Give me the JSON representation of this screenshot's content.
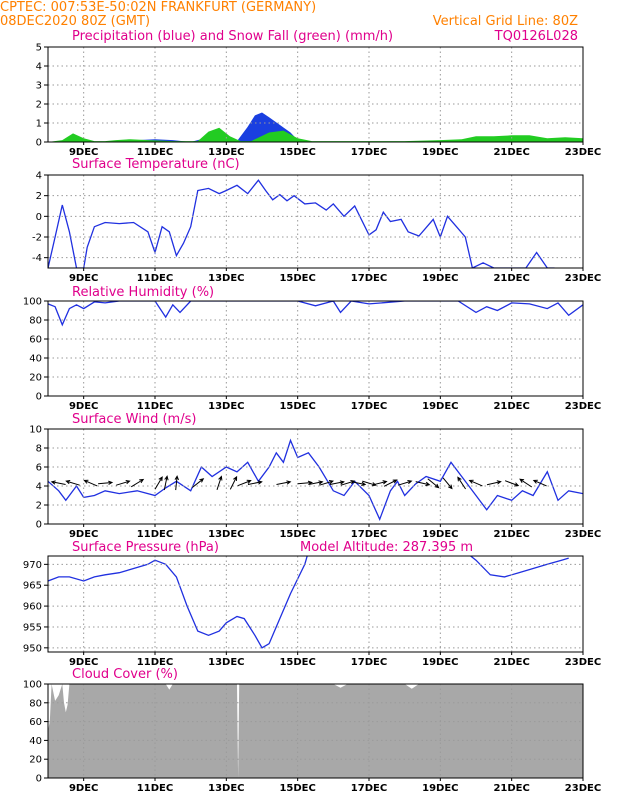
{
  "header": {
    "station": "CPTEC:   007:53E-50:02N   FRANKFURT (GERMANY)",
    "run": "08DEC2020 80Z (GMT)",
    "grid_note": "Vertical Grid Line: 80Z",
    "code": "TQ0126L028"
  },
  "colors": {
    "header": "#ff8000",
    "title": "#e0008c",
    "line": "#2030e0",
    "precip": "#1a3fe0",
    "snow": "#22cc22",
    "cloud": "#a8a8a8",
    "grid": "#999999"
  },
  "chart_data": [
    {
      "id": "precip",
      "type": "area",
      "title": "Precipitation (blue) and Snow Fall (green) (mm/h)",
      "x_labels": [
        "9DEC",
        "11DEC",
        "13DEC",
        "15DEC",
        "17DEC",
        "19DEC",
        "21DEC",
        "23DEC"
      ],
      "x_ticks": [
        1,
        3,
        5,
        7,
        9,
        11,
        13,
        15
      ],
      "xlim": [
        0,
        15
      ],
      "ylim": [
        0,
        5
      ],
      "yticks": [
        0,
        1,
        2,
        3,
        4,
        5
      ],
      "series": [
        {
          "name": "Precipitation",
          "color": "#1a3fe0",
          "x": [
            0,
            1.8,
            2.0,
            2.5,
            3.0,
            3.5,
            4.0,
            4.6,
            4.8,
            5.0,
            5.3,
            5.6,
            5.8,
            6.0,
            6.2,
            6.5,
            6.8,
            7.0,
            7.5,
            15
          ],
          "values": [
            0,
            0,
            0.05,
            0.1,
            0.15,
            0.1,
            0,
            0.3,
            0.55,
            0.3,
            0.05,
            0.8,
            1.4,
            1.55,
            1.3,
            0.9,
            0.5,
            0.1,
            0,
            0
          ]
        },
        {
          "name": "Snow Fall",
          "color": "#22cc22",
          "x": [
            0,
            0.4,
            0.7,
            1.0,
            1.3,
            1.6,
            1.9,
            2.3,
            2.8,
            3.5,
            4.2,
            4.5,
            4.8,
            5.1,
            5.4,
            5.7,
            6.2,
            6.6,
            7.0,
            7.4,
            8.0,
            9.0,
            10.0,
            11.0,
            11.6,
            12.0,
            12.5,
            13.0,
            13.5,
            14.0,
            14.5,
            15
          ],
          "values": [
            0,
            0.1,
            0.45,
            0.2,
            0.05,
            0.05,
            0.1,
            0.15,
            0.1,
            0.05,
            0.05,
            0.55,
            0.75,
            0.3,
            0.05,
            0.05,
            0.5,
            0.6,
            0.2,
            0.05,
            0.05,
            0.05,
            0.05,
            0.1,
            0.15,
            0.3,
            0.3,
            0.35,
            0.35,
            0.2,
            0.25,
            0.2
          ]
        }
      ]
    },
    {
      "id": "temp",
      "type": "line",
      "title": "Surface Temperature (nC)",
      "x_labels": [
        "9DEC",
        "11DEC",
        "13DEC",
        "15DEC",
        "17DEC",
        "19DEC",
        "21DEC",
        "23DEC"
      ],
      "x_ticks": [
        1,
        3,
        5,
        7,
        9,
        11,
        13,
        15
      ],
      "xlim": [
        0,
        15
      ],
      "ylim": [
        -5,
        4
      ],
      "yticks": [
        -4,
        -2,
        0,
        2,
        4
      ],
      "series": [
        {
          "name": "",
          "color": "#2030e0",
          "x": [
            0,
            0.2,
            0.4,
            0.6,
            0.8,
            1.0,
            1.1,
            1.3,
            1.6,
            2.0,
            2.4,
            2.8,
            3.0,
            3.2,
            3.4,
            3.6,
            3.8,
            4.0,
            4.2,
            4.5,
            4.8,
            5.0,
            5.3,
            5.6,
            5.9,
            6.1,
            6.3,
            6.5,
            6.7,
            6.9,
            7.2,
            7.5,
            7.8,
            8.0,
            8.3,
            8.6,
            9.0,
            9.2,
            9.4,
            9.6,
            9.9,
            10.1,
            10.4,
            10.6,
            10.8,
            11.0,
            11.2,
            11.5,
            11.7,
            11.9,
            12.2,
            12.5,
            12.8,
            13.0,
            13.4,
            13.7,
            14.0,
            14.2
          ],
          "values": [
            -5,
            -2,
            1.1,
            -1.5,
            -5,
            -5,
            -3,
            -1,
            -0.6,
            -0.7,
            -0.6,
            -1.5,
            -3.5,
            -1,
            -1.5,
            -3.8,
            -2.6,
            -1,
            2.5,
            2.7,
            2.2,
            2.5,
            3.0,
            2.2,
            3.5,
            2.5,
            1.6,
            2.1,
            1.5,
            2.0,
            1.2,
            1.3,
            0.6,
            1.2,
            0.0,
            1.0,
            -1.8,
            -1.3,
            0.4,
            -0.5,
            -0.3,
            -1.5,
            -1.9,
            -1.1,
            -0.3,
            -2.0,
            0.0,
            -1.2,
            -2.0,
            -5,
            -4.5,
            -5,
            -5,
            -5,
            -5,
            -3.5,
            -5,
            -5
          ]
        }
      ]
    },
    {
      "id": "rh",
      "type": "line",
      "title": "Relative Humidity (%)",
      "x_labels": [
        "9DEC",
        "11DEC",
        "13DEC",
        "15DEC",
        "17DEC",
        "19DEC",
        "21DEC",
        "23DEC"
      ],
      "x_ticks": [
        1,
        3,
        5,
        7,
        9,
        11,
        13,
        15
      ],
      "xlim": [
        0,
        15
      ],
      "ylim": [
        0,
        100
      ],
      "yticks": [
        0,
        20,
        40,
        60,
        80,
        100
      ],
      "series": [
        {
          "name": "",
          "color": "#2030e0",
          "x": [
            0,
            0.2,
            0.4,
            0.6,
            0.8,
            1.0,
            1.3,
            1.6,
            2.0,
            2.5,
            3.0,
            3.3,
            3.5,
            3.7,
            4.0,
            5.0,
            6.0,
            7.0,
            7.5,
            8.0,
            8.2,
            8.5,
            9.0,
            10.0,
            11.0,
            11.5,
            12.0,
            12.3,
            12.6,
            13.0,
            13.5,
            14.0,
            14.3,
            14.6,
            15
          ],
          "values": [
            97,
            94,
            75,
            92,
            96,
            92,
            99,
            98,
            100,
            100,
            100,
            83,
            96,
            88,
            100,
            100,
            100,
            100,
            95,
            100,
            88,
            100,
            97,
            100,
            100,
            100,
            88,
            94,
            90,
            98,
            97,
            92,
            98,
            85,
            96
          ]
        }
      ]
    },
    {
      "id": "wind",
      "type": "line",
      "title": "Surface Wind (m/s)",
      "x_labels": [
        "9DEC",
        "11DEC",
        "13DEC",
        "15DEC",
        "17DEC",
        "19DEC",
        "21DEC",
        "23DEC"
      ],
      "x_ticks": [
        1,
        3,
        5,
        7,
        9,
        11,
        13,
        15
      ],
      "xlim": [
        0,
        15
      ],
      "ylim": [
        0,
        10
      ],
      "yticks": [
        0,
        2,
        4,
        6,
        8,
        10
      ],
      "series": [
        {
          "name": "",
          "color": "#2030e0",
          "x": [
            0,
            0.3,
            0.5,
            0.8,
            1.0,
            1.3,
            1.6,
            2.0,
            2.5,
            3.0,
            3.3,
            3.6,
            4.0,
            4.3,
            4.6,
            5.0,
            5.3,
            5.6,
            5.9,
            6.2,
            6.4,
            6.6,
            6.8,
            7.0,
            7.3,
            7.6,
            8.0,
            8.3,
            8.6,
            9.0,
            9.3,
            9.6,
            9.8,
            10.0,
            10.3,
            10.6,
            11.0,
            11.3,
            11.6,
            12.0,
            12.3,
            12.6,
            13.0,
            13.3,
            13.6,
            14.0,
            14.3,
            14.6,
            15
          ],
          "values": [
            4.5,
            3.5,
            2.5,
            4.0,
            2.8,
            3.0,
            3.5,
            3.2,
            3.5,
            3.0,
            3.8,
            4.5,
            3.5,
            6.0,
            5.0,
            6.0,
            5.5,
            6.5,
            4.5,
            6.0,
            7.5,
            6.5,
            8.8,
            7.0,
            7.5,
            6.0,
            3.5,
            3.0,
            4.5,
            3.0,
            0.5,
            3.5,
            4.5,
            3.0,
            4.2,
            5.0,
            4.5,
            6.5,
            5.0,
            3.0,
            1.5,
            3.0,
            2.5,
            3.5,
            3.0,
            5.5,
            2.5,
            3.5,
            3.2
          ]
        }
      ],
      "arrows_u": [
        -1,
        -1,
        -0.7,
        1,
        1,
        1,
        0.6,
        0.2,
        0.1,
        1,
        0.3,
        0.5,
        1,
        1,
        1,
        1,
        1,
        1,
        1,
        1,
        1,
        1,
        0.8,
        0.8,
        1,
        0.9,
        0.6,
        0.5,
        -0.2,
        -0.7,
        0.9,
        0.8,
        -0.3,
        -0.7
      ],
      "arrows_v": [
        0.2,
        0.3,
        0.3,
        0.1,
        0.3,
        0.6,
        1,
        1,
        1,
        0.8,
        0.9,
        1,
        0.4,
        0.2,
        0.2,
        0.1,
        0.2,
        0.3,
        0.2,
        0.3,
        -0.2,
        -0.3,
        0.2,
        0.4,
        0.3,
        -0.2,
        -0.5,
        -0.6,
        0.3,
        0.3,
        0.2,
        -0.3,
        0.2,
        0.3
      ],
      "arrows_x": [
        0.3,
        0.7,
        1.2,
        1.6,
        2.1,
        2.5,
        3.1,
        3.3,
        3.6,
        4.2,
        4.8,
        5.2,
        5.5,
        5.8,
        6.6,
        7.2,
        7.5,
        7.8,
        8.1,
        8.4,
        8.7,
        9.0,
        9.3,
        9.6,
        10.0,
        10.5,
        10.8,
        11.2,
        11.6,
        12.0,
        12.5,
        13.0,
        13.4,
        13.8
      ]
    },
    {
      "id": "pres",
      "type": "line",
      "title": "Surface Pressure (hPa)",
      "subtitle": "Model Altitude: 287.395 m",
      "x_labels": [
        "9DEC",
        "11DEC",
        "13DEC",
        "15DEC",
        "17DEC",
        "19DEC",
        "21DEC",
        "23DEC"
      ],
      "x_ticks": [
        1,
        3,
        5,
        7,
        9,
        11,
        13,
        15
      ],
      "xlim": [
        0,
        15
      ],
      "ylim": [
        949,
        972
      ],
      "yticks": [
        950,
        955,
        960,
        965,
        970
      ],
      "series": [
        {
          "name": "",
          "color": "#2030e0",
          "x": [
            0,
            0.3,
            0.6,
            1.0,
            1.3,
            1.6,
            2.0,
            2.4,
            2.8,
            3.0,
            3.3,
            3.6,
            3.9,
            4.2,
            4.5,
            4.8,
            5.0,
            5.3,
            5.5,
            5.8,
            6.0,
            6.2,
            6.5,
            6.8,
            7.2,
            7.3,
            11.7,
            12.0,
            12.4,
            12.8,
            13.2,
            13.6,
            14.0,
            14.4,
            14.6
          ],
          "values": [
            966,
            967,
            967,
            966,
            967,
            967.5,
            968,
            969,
            970,
            971,
            970,
            967,
            960,
            954,
            953,
            954,
            956,
            957.5,
            957,
            953,
            950,
            951,
            957,
            963,
            970,
            973,
            973,
            971,
            967.5,
            967,
            968,
            969,
            970,
            971,
            971.5
          ]
        }
      ]
    },
    {
      "id": "cloud",
      "type": "area",
      "title": "Cloud Cover (%)",
      "x_labels": [
        "9DEC",
        "11DEC",
        "13DEC",
        "15DEC",
        "17DEC",
        "19DEC",
        "21DEC",
        "23DEC"
      ],
      "x_ticks": [
        1,
        3,
        5,
        7,
        9,
        11,
        13,
        15
      ],
      "xlim": [
        0,
        15
      ],
      "ylim": [
        0,
        100
      ],
      "yticks": [
        0,
        20,
        40,
        60,
        80,
        100
      ],
      "series": [
        {
          "name": "",
          "color": "#a8a8a8",
          "x": [
            0,
            0.05,
            0.1,
            0.2,
            0.3,
            0.4,
            0.45,
            0.5,
            0.55,
            0.6,
            0.7,
            0.8,
            3.3,
            3.4,
            3.5,
            5.3,
            5.33,
            5.36,
            5.4,
            8.0,
            8.2,
            8.4,
            8.6,
            10.0,
            10.2,
            10.4,
            15
          ],
          "values": [
            50,
            60,
            100,
            82,
            88,
            100,
            80,
            70,
            78,
            100,
            100,
            100,
            100,
            94,
            100,
            100,
            0,
            100,
            100,
            100,
            96,
            100,
            100,
            100,
            95,
            100,
            100
          ]
        }
      ]
    }
  ]
}
